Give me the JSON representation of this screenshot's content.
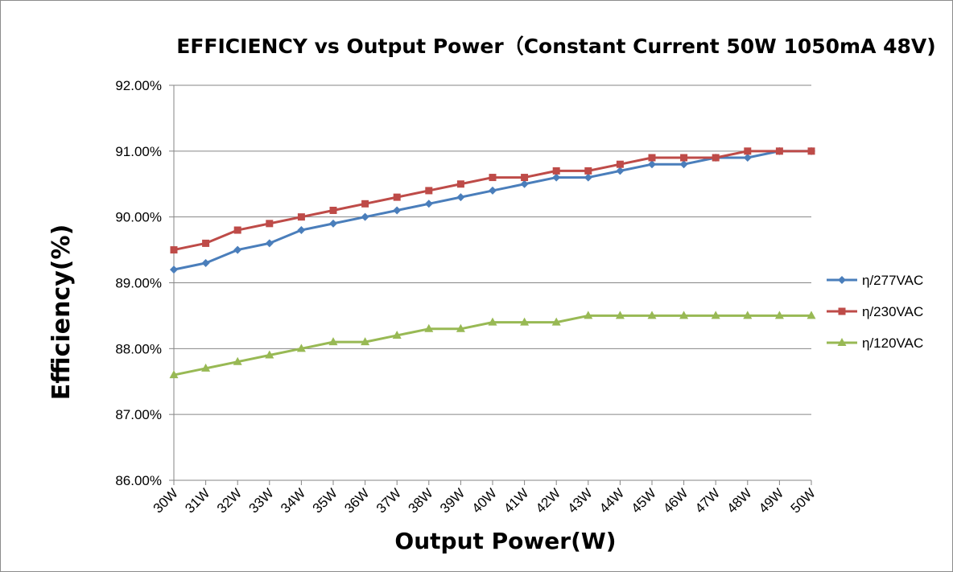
{
  "chart_data": {
    "type": "line",
    "title": "EFFICIENCY vs Output Power（Constant Current 50W 1050mA 48V)",
    "xlabel": "Output Power(W)",
    "ylabel": "Efficiency(%)",
    "categories": [
      "30W",
      "31W",
      "32W",
      "33W",
      "34W",
      "35W",
      "36W",
      "37W",
      "38W",
      "39W",
      "40W",
      "41W",
      "42W",
      "43W",
      "44W",
      "45W",
      "46W",
      "47W",
      "48W",
      "49W",
      "50W"
    ],
    "ylim": [
      86,
      92
    ],
    "yticks": [
      "86.00%",
      "87.00%",
      "88.00%",
      "89.00%",
      "90.00%",
      "91.00%",
      "92.00%"
    ],
    "grid": true,
    "legend_position": "right",
    "series": [
      {
        "name": "η/277VAC",
        "color": "#4a7ebb",
        "marker": "diamond",
        "values": [
          89.2,
          89.3,
          89.5,
          89.6,
          89.8,
          89.9,
          90.0,
          90.1,
          90.2,
          90.3,
          90.4,
          90.5,
          90.6,
          90.6,
          90.7,
          90.8,
          90.8,
          90.9,
          90.9,
          91.0,
          91.0
        ]
      },
      {
        "name": "η/230VAC",
        "color": "#be4b48",
        "marker": "square",
        "values": [
          89.5,
          89.6,
          89.8,
          89.9,
          90.0,
          90.1,
          90.2,
          90.3,
          90.4,
          90.5,
          90.6,
          90.6,
          90.7,
          90.7,
          90.8,
          90.9,
          90.9,
          90.9,
          91.0,
          91.0,
          91.0
        ]
      },
      {
        "name": "η/120VAC",
        "color": "#98b954",
        "marker": "triangle",
        "values": [
          87.6,
          87.7,
          87.8,
          87.9,
          88.0,
          88.1,
          88.1,
          88.2,
          88.3,
          88.3,
          88.4,
          88.4,
          88.4,
          88.5,
          88.5,
          88.5,
          88.5,
          88.5,
          88.5,
          88.5,
          88.5
        ]
      }
    ]
  }
}
